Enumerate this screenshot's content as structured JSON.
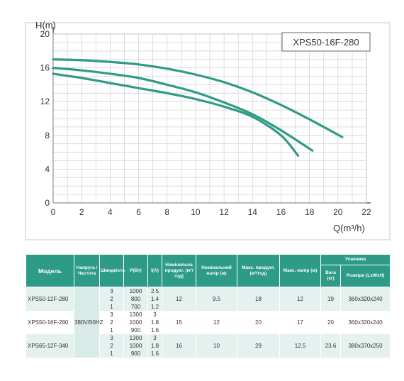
{
  "chart_data": {
    "type": "line",
    "title": "XPS50-16F-280",
    "xlabel": "Q(m³/h)",
    "ylabel": "H(m)",
    "xlim": [
      0,
      22
    ],
    "ylim": [
      0,
      20
    ],
    "x_ticks": [
      "0",
      "2",
      "4",
      "6",
      "8",
      "10",
      "12",
      "14",
      "16",
      "18",
      "20",
      "22"
    ],
    "y_ticks": [
      "0",
      "4",
      "8",
      "12",
      "16",
      "20"
    ],
    "grid": true,
    "line_color": "#2e9b86",
    "series": [
      {
        "x": [
          0,
          2,
          4,
          6,
          8,
          10,
          12,
          14,
          16,
          18,
          20.3
        ],
        "y": [
          17.0,
          16.9,
          16.7,
          16.4,
          15.9,
          15.2,
          14.3,
          13.1,
          11.6,
          9.9,
          7.8
        ]
      },
      {
        "x": [
          0,
          2,
          4,
          6,
          8,
          10,
          12,
          14,
          16,
          18.2
        ],
        "y": [
          16.0,
          15.7,
          15.3,
          14.8,
          14.0,
          13.1,
          11.9,
          10.5,
          8.6,
          6.2
        ]
      },
      {
        "x": [
          0,
          2,
          4,
          6,
          8,
          10,
          12,
          14,
          16,
          17.2
        ],
        "y": [
          15.3,
          14.8,
          14.2,
          13.6,
          13.0,
          12.3,
          11.4,
          10.2,
          8.0,
          5.6
        ]
      }
    ]
  },
  "table": {
    "headers": {
      "model": "Модель",
      "voltage": "Напруга /Частота",
      "speed": "Швидкість",
      "power": "P(Вт)",
      "current": "I(A)",
      "nom_flow": "Номінальна продукт. (м³/год)",
      "nom_head": "Номінальний напір (м)",
      "max_flow": "Макс. продукт. (м³/год)",
      "max_head": "Макс. напір (м)",
      "packing": "Упаковка",
      "weight": "Вага (кг)",
      "dims": "Розміри (LxWxH)"
    },
    "voltage_value": "380V/50HZ",
    "groups": [
      {
        "model": "XPS50-12F-280",
        "nom_flow": "12",
        "nom_head": "9.5",
        "max_flow": "18",
        "max_head": "12",
        "weight": "19",
        "dims": "360x320x240",
        "rows": [
          {
            "speed": "3",
            "power": "1000",
            "current": "2.5"
          },
          {
            "speed": "2",
            "power": "800",
            "current": "1.4"
          },
          {
            "speed": "1",
            "power": "700",
            "current": "1.2"
          }
        ]
      },
      {
        "model": "XPS50-16F-280",
        "nom_flow": "15",
        "nom_head": "12",
        "max_flow": "20",
        "max_head": "17",
        "weight": "20",
        "dims": "360x320x240",
        "rows": [
          {
            "speed": "3",
            "power": "1300",
            "current": "3"
          },
          {
            "speed": "2",
            "power": "1000",
            "current": "1.8"
          },
          {
            "speed": "1",
            "power": "900",
            "current": "1.6"
          }
        ]
      },
      {
        "model": "XPS65-12F-340",
        "nom_flow": "16",
        "nom_head": "10",
        "max_flow": "29",
        "max_head": "12.5",
        "weight": "23.6",
        "dims": "380x370x250",
        "rows": [
          {
            "speed": "3",
            "power": "1300",
            "current": "3"
          },
          {
            "speed": "2",
            "power": "1000",
            "current": "1.8"
          },
          {
            "speed": "1",
            "power": "900",
            "current": "1.6"
          }
        ]
      }
    ]
  }
}
